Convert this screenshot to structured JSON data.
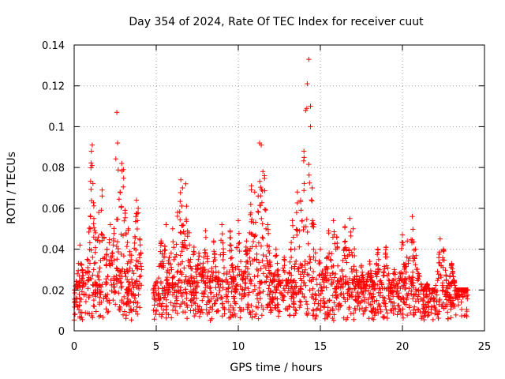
{
  "chart_data": {
    "type": "scatter",
    "title": "Day 354 of 2024, Rate Of TEC Index for receiver cuut",
    "xlabel": "GPS time / hours",
    "ylabel": "ROTI / TECUs",
    "xlim": [
      0,
      25
    ],
    "ylim": [
      0,
      0.14
    ],
    "xticks": [
      0,
      5,
      10,
      15,
      20,
      25
    ],
    "xtick_labels": [
      "0",
      "5",
      "10",
      "15",
      "20",
      "25"
    ],
    "yticks": [
      0,
      0.02,
      0.04,
      0.06,
      0.08,
      0.1,
      0.12,
      0.14
    ],
    "ytick_labels": [
      "0",
      "0.02",
      "0.04",
      "0.06",
      "0.08",
      "0.1",
      "0.12",
      "0.14"
    ],
    "grid": true,
    "marker": "+",
    "color": "#ff0000",
    "data_coverage_hours": [
      [
        0,
        4.1
      ],
      [
        4.8,
        24
      ]
    ],
    "series": [
      {
        "name": "ROTI",
        "points": [
          [
            0.1,
            0.016
          ],
          [
            0.2,
            0.012
          ],
          [
            0.3,
            0.022
          ],
          [
            0.35,
            0.042
          ],
          [
            0.5,
            0.03
          ],
          [
            0.6,
            0.018
          ],
          [
            0.8,
            0.035
          ],
          [
            1.0,
            0.05
          ],
          [
            1.05,
            0.088
          ],
          [
            1.1,
            0.091
          ],
          [
            1.1,
            0.081
          ],
          [
            1.2,
            0.055
          ],
          [
            1.3,
            0.048
          ],
          [
            1.5,
            0.058
          ],
          [
            1.7,
            0.066
          ],
          [
            1.7,
            0.069
          ],
          [
            2.0,
            0.04
          ],
          [
            2.2,
            0.052
          ],
          [
            2.4,
            0.045
          ],
          [
            2.6,
            0.107
          ],
          [
            2.65,
            0.092
          ],
          [
            2.8,
            0.068
          ],
          [
            2.9,
            0.082
          ],
          [
            3.0,
            0.079
          ],
          [
            3.1,
            0.059
          ],
          [
            3.3,
            0.05
          ],
          [
            3.5,
            0.037
          ],
          [
            3.8,
            0.064
          ],
          [
            3.9,
            0.06
          ],
          [
            4.0,
            0.045
          ],
          [
            4.1,
            0.03
          ],
          [
            5.0,
            0.024
          ],
          [
            5.3,
            0.044
          ],
          [
            5.6,
            0.052
          ],
          [
            5.8,
            0.036
          ],
          [
            6.0,
            0.05
          ],
          [
            6.3,
            0.058
          ],
          [
            6.5,
            0.074
          ],
          [
            6.6,
            0.07
          ],
          [
            6.8,
            0.072
          ],
          [
            7.0,
            0.048
          ],
          [
            7.3,
            0.041
          ],
          [
            7.6,
            0.038
          ],
          [
            8.0,
            0.049
          ],
          [
            8.5,
            0.044
          ],
          [
            9.0,
            0.052
          ],
          [
            9.5,
            0.049
          ],
          [
            10.0,
            0.054
          ],
          [
            10.5,
            0.044
          ],
          [
            10.8,
            0.071
          ],
          [
            11.0,
            0.068
          ],
          [
            11.3,
            0.092
          ],
          [
            11.4,
            0.091
          ],
          [
            11.5,
            0.078
          ],
          [
            11.6,
            0.076
          ],
          [
            11.8,
            0.052
          ],
          [
            12.3,
            0.04
          ],
          [
            12.8,
            0.036
          ],
          [
            13.3,
            0.054
          ],
          [
            13.6,
            0.068
          ],
          [
            13.8,
            0.064
          ],
          [
            14.0,
            0.088
          ],
          [
            14.1,
            0.108
          ],
          [
            14.2,
            0.121
          ],
          [
            14.3,
            0.133
          ],
          [
            14.4,
            0.11
          ],
          [
            14.4,
            0.1
          ],
          [
            14.5,
            0.07
          ],
          [
            14.6,
            0.052
          ],
          [
            15.0,
            0.04
          ],
          [
            15.5,
            0.049
          ],
          [
            15.8,
            0.054
          ],
          [
            16.0,
            0.046
          ],
          [
            16.5,
            0.051
          ],
          [
            16.8,
            0.055
          ],
          [
            17.0,
            0.05
          ],
          [
            17.5,
            0.032
          ],
          [
            18.0,
            0.034
          ],
          [
            18.5,
            0.04
          ],
          [
            19.0,
            0.041
          ],
          [
            19.5,
            0.03
          ],
          [
            20.0,
            0.047
          ],
          [
            20.3,
            0.044
          ],
          [
            20.6,
            0.056
          ],
          [
            20.8,
            0.04
          ],
          [
            21.0,
            0.028
          ],
          [
            21.5,
            0.023
          ],
          [
            22.0,
            0.02
          ],
          [
            22.3,
            0.045
          ],
          [
            22.5,
            0.04
          ],
          [
            23.0,
            0.033
          ],
          [
            23.5,
            0.02
          ],
          [
            23.9,
            0.017
          ]
        ]
      }
    ]
  }
}
